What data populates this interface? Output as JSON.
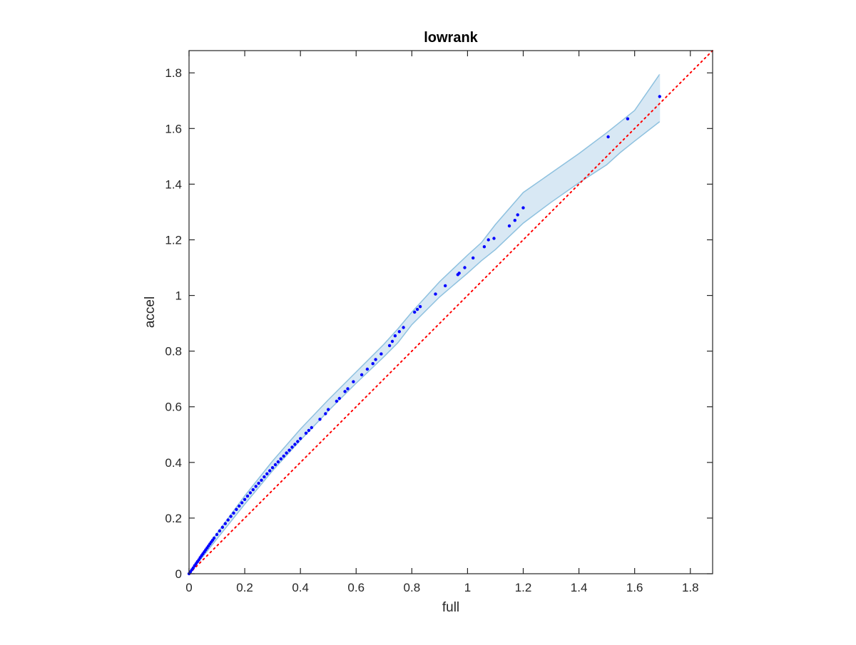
{
  "chart_data": {
    "type": "scatter",
    "title": "lowrank",
    "xlabel": "full",
    "ylabel": "accel",
    "xlim": [
      0,
      1.88
    ],
    "ylim": [
      0,
      1.88
    ],
    "xticks": [
      0,
      0.2,
      0.4,
      0.6,
      0.8,
      1,
      1.2,
      1.4,
      1.6,
      1.8
    ],
    "yticks": [
      0,
      0.2,
      0.4,
      0.6,
      0.8,
      1,
      1.2,
      1.4,
      1.6,
      1.8
    ],
    "xtick_labels": [
      "0",
      "0.2",
      "0.4",
      "0.6",
      "0.8",
      "1",
      "1.2",
      "1.4",
      "1.6",
      "1.8"
    ],
    "ytick_labels": [
      "0",
      "0.2",
      "0.4",
      "0.6",
      "0.8",
      "1",
      "1.2",
      "1.4",
      "1.6",
      "1.8"
    ],
    "grid": false,
    "colors": {
      "points": "#0000ff",
      "band_fill": "#d8e8f4",
      "band_edge": "#8ec1df",
      "reference_line": "#ff0000",
      "axes": "#262626"
    },
    "reference_line": {
      "style": "dotted",
      "from": [
        0,
        0
      ],
      "to": [
        1.88,
        1.88
      ]
    },
    "band": {
      "x": [
        0,
        0.05,
        0.1,
        0.2,
        0.3,
        0.4,
        0.5,
        0.6,
        0.7,
        0.75,
        0.8,
        0.85,
        0.9,
        1.0,
        1.05,
        1.1,
        1.2,
        1.3,
        1.4,
        1.5,
        1.55,
        1.6,
        1.69
      ],
      "upper": [
        0,
        0.075,
        0.145,
        0.28,
        0.405,
        0.52,
        0.625,
        0.725,
        0.825,
        0.88,
        0.94,
        0.995,
        1.05,
        1.145,
        1.19,
        1.255,
        1.37,
        1.44,
        1.51,
        1.585,
        1.625,
        1.665,
        1.795
      ],
      "lower": [
        0,
        0.062,
        0.125,
        0.25,
        0.37,
        0.48,
        0.585,
        0.685,
        0.78,
        0.83,
        0.895,
        0.945,
        0.995,
        1.08,
        1.125,
        1.165,
        1.26,
        1.335,
        1.405,
        1.47,
        1.515,
        1.555,
        1.625
      ]
    },
    "series": [
      {
        "x": [
          0,
          0.005,
          0.01,
          0.015,
          0.02,
          0.025,
          0.03,
          0.035,
          0.04,
          0.045,
          0.05,
          0.055,
          0.06,
          0.065,
          0.07,
          0.075,
          0.08,
          0.085,
          0.09,
          0.1,
          0.11,
          0.12,
          0.13,
          0.14,
          0.15,
          0.16,
          0.17,
          0.18,
          0.19,
          0.2,
          0.21,
          0.22,
          0.23,
          0.24,
          0.25,
          0.26,
          0.27,
          0.28,
          0.29,
          0.3,
          0.31,
          0.32,
          0.33,
          0.34,
          0.35,
          0.36,
          0.37,
          0.38,
          0.39,
          0.4,
          0.42,
          0.43,
          0.44,
          0.47,
          0.49,
          0.5,
          0.53,
          0.54,
          0.56,
          0.57,
          0.59,
          0.62,
          0.64,
          0.66,
          0.67,
          0.69,
          0.72,
          0.73,
          0.74,
          0.755,
          0.77,
          0.81,
          0.82,
          0.83,
          0.885,
          0.92,
          0.965,
          0.97,
          0.99,
          1.02,
          1.06,
          1.075,
          1.095,
          1.15,
          1.17,
          1.18,
          1.2,
          1.505,
          1.575,
          1.69
        ],
        "y": [
          0,
          0.007,
          0.014,
          0.021,
          0.029,
          0.036,
          0.043,
          0.05,
          0.058,
          0.065,
          0.072,
          0.079,
          0.086,
          0.093,
          0.1,
          0.107,
          0.114,
          0.121,
          0.128,
          0.141,
          0.154,
          0.167,
          0.18,
          0.193,
          0.206,
          0.218,
          0.231,
          0.243,
          0.255,
          0.267,
          0.279,
          0.291,
          0.302,
          0.314,
          0.325,
          0.336,
          0.348,
          0.359,
          0.37,
          0.381,
          0.392,
          0.402,
          0.413,
          0.423,
          0.434,
          0.444,
          0.455,
          0.465,
          0.475,
          0.486,
          0.505,
          0.515,
          0.525,
          0.555,
          0.575,
          0.59,
          0.62,
          0.63,
          0.655,
          0.665,
          0.69,
          0.715,
          0.735,
          0.755,
          0.77,
          0.79,
          0.82,
          0.835,
          0.855,
          0.87,
          0.885,
          0.94,
          0.95,
          0.96,
          1.005,
          1.035,
          1.075,
          1.08,
          1.1,
          1.135,
          1.175,
          1.2,
          1.205,
          1.25,
          1.27,
          1.29,
          1.315,
          1.57,
          1.635,
          1.715
        ]
      }
    ]
  }
}
